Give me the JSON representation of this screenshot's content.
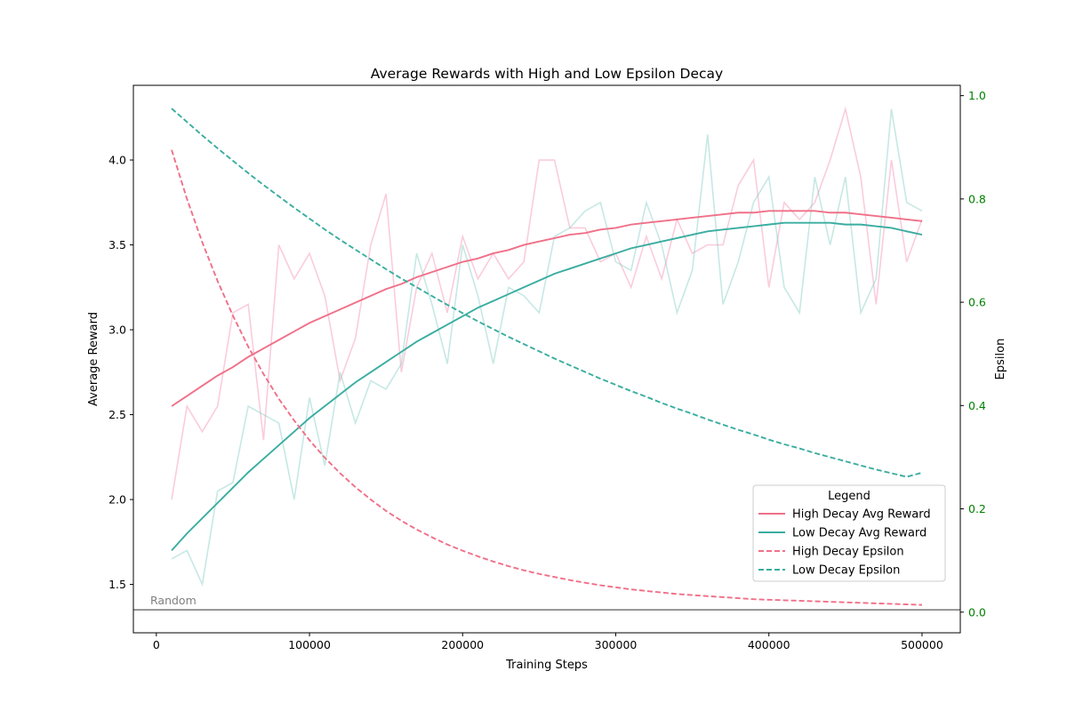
{
  "chart_data": {
    "type": "line",
    "title": "Average Rewards with High and Low Epsilon Decay",
    "xlabel": "Training Steps",
    "ylabel": "Average Reward",
    "y2label": "Epsilon",
    "xlim": [
      -15000,
      525000
    ],
    "ylim": [
      1.215,
      4.44
    ],
    "y2lim": [
      -0.04,
      1.02
    ],
    "xticks": [
      0,
      100000,
      200000,
      300000,
      400000,
      500000
    ],
    "yticks": [
      1.5,
      2.0,
      2.5,
      3.0,
      3.5,
      4.0
    ],
    "yticklabels": [
      "1.5",
      "2.0",
      "2.5",
      "3.0",
      "3.5",
      "4.0"
    ],
    "y2ticks": [
      0.0,
      0.2,
      0.4,
      0.6,
      0.8,
      1.0
    ],
    "y2ticklabels": [
      "0.0",
      "0.2",
      "0.4",
      "0.6",
      "0.8",
      "1.0"
    ],
    "x": [
      10000,
      20000,
      30000,
      40000,
      50000,
      60000,
      70000,
      80000,
      90000,
      100000,
      110000,
      120000,
      130000,
      140000,
      150000,
      160000,
      170000,
      180000,
      190000,
      200000,
      210000,
      220000,
      230000,
      240000,
      250000,
      260000,
      270000,
      280000,
      290000,
      300000,
      310000,
      320000,
      330000,
      340000,
      350000,
      360000,
      370000,
      380000,
      390000,
      400000,
      410000,
      420000,
      430000,
      440000,
      450000,
      460000,
      470000,
      480000,
      490000,
      500000
    ],
    "raw_series": [
      {
        "key": "high_raw",
        "color": "#f48fb1",
        "values": [
          2.0,
          2.55,
          2.4,
          2.55,
          3.1,
          3.15,
          2.35,
          3.5,
          3.3,
          3.45,
          3.2,
          2.7,
          2.95,
          3.5,
          3.8,
          2.75,
          3.25,
          3.45,
          3.1,
          3.55,
          3.3,
          3.45,
          3.3,
          3.4,
          4.0,
          4.0,
          3.6,
          3.6,
          3.4,
          3.45,
          3.25,
          3.55,
          3.3,
          3.65,
          3.45,
          3.5,
          3.5,
          3.85,
          4.0,
          3.25,
          3.75,
          3.65,
          3.75,
          4.0,
          4.3,
          3.9,
          3.15,
          4.0,
          3.4,
          3.65
        ]
      },
      {
        "key": "low_raw",
        "color": "#80cbc4",
        "values": [
          1.65,
          1.7,
          1.5,
          2.05,
          2.1,
          2.55,
          2.5,
          2.45,
          2.0,
          2.6,
          2.2,
          2.75,
          2.45,
          2.7,
          2.65,
          2.8,
          3.45,
          3.15,
          2.8,
          3.5,
          3.2,
          2.8,
          3.25,
          3.2,
          3.1,
          3.55,
          3.6,
          3.7,
          3.75,
          3.4,
          3.35,
          3.75,
          3.5,
          3.1,
          3.35,
          4.15,
          3.15,
          3.4,
          3.75,
          3.9,
          3.25,
          3.1,
          3.9,
          3.5,
          3.9,
          3.1,
          3.3,
          4.3,
          3.75,
          3.7
        ]
      }
    ],
    "series": [
      {
        "name": "High Decay Avg Reward",
        "key": "high_avg",
        "axis": "left",
        "style": "solid",
        "color": "#f07088",
        "values": [
          2.55,
          2.61,
          2.67,
          2.73,
          2.78,
          2.84,
          2.89,
          2.94,
          2.99,
          3.04,
          3.08,
          3.12,
          3.16,
          3.2,
          3.24,
          3.27,
          3.31,
          3.34,
          3.37,
          3.4,
          3.42,
          3.45,
          3.47,
          3.5,
          3.52,
          3.54,
          3.56,
          3.57,
          3.59,
          3.6,
          3.62,
          3.63,
          3.64,
          3.65,
          3.66,
          3.67,
          3.68,
          3.69,
          3.69,
          3.7,
          3.7,
          3.7,
          3.7,
          3.69,
          3.69,
          3.68,
          3.67,
          3.66,
          3.65,
          3.64
        ]
      },
      {
        "name": "Low Decay Avg Reward",
        "key": "low_avg",
        "axis": "left",
        "style": "solid",
        "color": "#3aada0",
        "values": [
          1.7,
          1.8,
          1.89,
          1.98,
          2.07,
          2.16,
          2.24,
          2.32,
          2.4,
          2.48,
          2.55,
          2.62,
          2.69,
          2.75,
          2.81,
          2.87,
          2.93,
          2.98,
          3.03,
          3.08,
          3.13,
          3.17,
          3.21,
          3.25,
          3.29,
          3.33,
          3.36,
          3.39,
          3.42,
          3.45,
          3.48,
          3.5,
          3.52,
          3.54,
          3.56,
          3.58,
          3.59,
          3.6,
          3.61,
          3.62,
          3.63,
          3.63,
          3.63,
          3.63,
          3.62,
          3.62,
          3.61,
          3.6,
          3.58,
          3.56
        ]
      },
      {
        "name": "High Decay Epsilon",
        "key": "high_eps",
        "axis": "right",
        "style": "dashed",
        "color": "#f07088",
        "values": [
          0.895,
          0.8,
          0.716,
          0.641,
          0.574,
          0.514,
          0.461,
          0.413,
          0.371,
          0.333,
          0.299,
          0.269,
          0.242,
          0.218,
          0.196,
          0.177,
          0.16,
          0.145,
          0.131,
          0.119,
          0.108,
          0.098,
          0.089,
          0.081,
          0.074,
          0.068,
          0.062,
          0.057,
          0.052,
          0.048,
          0.044,
          0.041,
          0.038,
          0.035,
          0.033,
          0.031,
          0.029,
          0.027,
          0.025,
          0.024,
          0.023,
          0.022,
          0.021,
          0.02,
          0.019,
          0.018,
          0.017,
          0.016,
          0.015,
          0.014
        ]
      },
      {
        "name": "Low Decay Epsilon",
        "key": "low_eps",
        "axis": "right",
        "style": "dashed",
        "color": "#3aada0",
        "values": [
          0.975,
          0.949,
          0.923,
          0.898,
          0.874,
          0.85,
          0.827,
          0.805,
          0.783,
          0.762,
          0.741,
          0.721,
          0.702,
          0.683,
          0.664,
          0.646,
          0.629,
          0.612,
          0.595,
          0.579,
          0.563,
          0.548,
          0.533,
          0.519,
          0.505,
          0.491,
          0.478,
          0.465,
          0.452,
          0.44,
          0.428,
          0.417,
          0.405,
          0.394,
          0.384,
          0.373,
          0.363,
          0.353,
          0.344,
          0.334,
          0.325,
          0.317,
          0.308,
          0.3,
          0.292,
          0.284,
          0.276,
          0.269,
          0.262,
          0.27
        ]
      }
    ],
    "baseline": {
      "label": "Random",
      "value": 1.35,
      "color": "#808080"
    },
    "legend": {
      "title": "Legend",
      "placement": "lower-right"
    },
    "grid": false,
    "colors": {
      "right_axis": "#008000",
      "axis": "#000000"
    }
  }
}
